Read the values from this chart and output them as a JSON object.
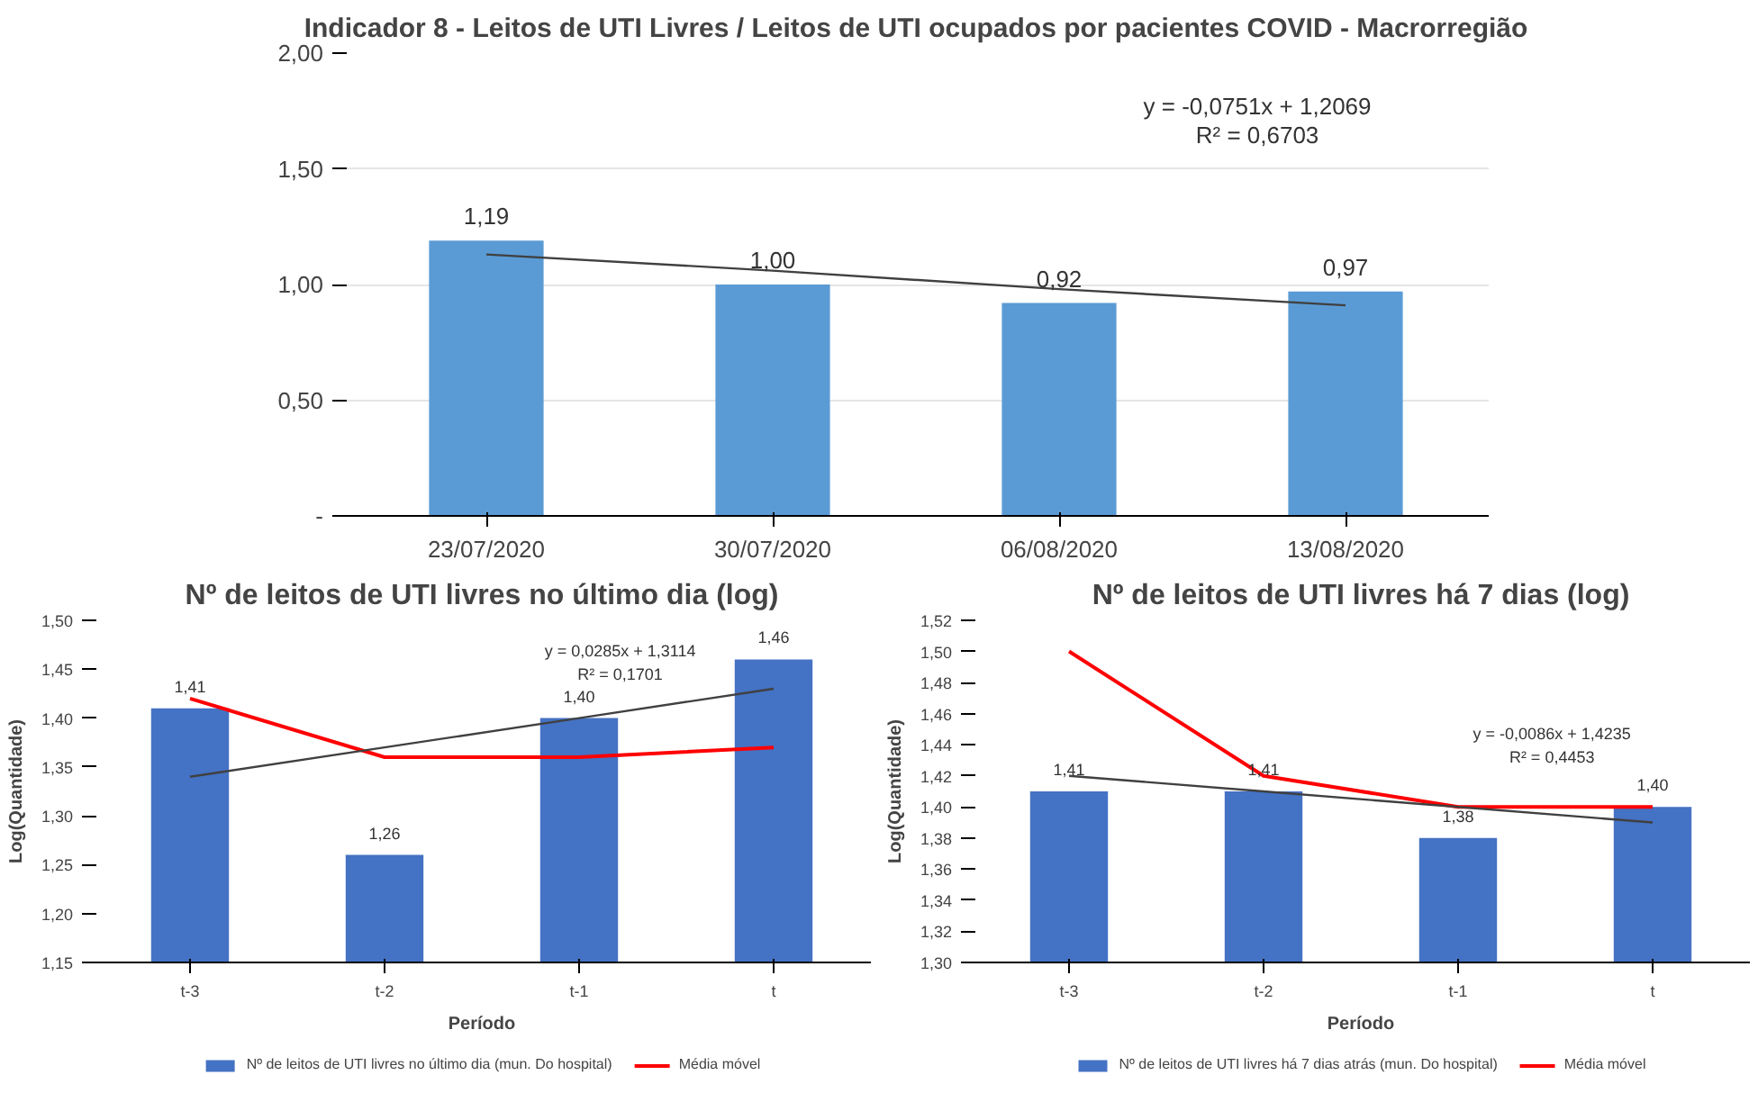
{
  "chart_data": [
    {
      "type": "bar",
      "title": "Indicador 8 - Leitos de UTI Livres / Leitos de UTI ocupados por pacientes COVID - Macrorregião",
      "categories": [
        "23/07/2020",
        "30/07/2020",
        "06/08/2020",
        "13/08/2020"
      ],
      "series": [
        {
          "color": "#5b9bd5",
          "values": [
            1.19,
            1.0,
            0.92,
            0.97
          ],
          "value_labels": [
            "1,19",
            "1,00",
            "0,92",
            "0,97"
          ]
        },
        {
          "type": "line",
          "color": "#404040",
          "values": [
            1.13,
            1.06,
            0.98,
            0.91
          ]
        }
      ],
      "ylim": [
        0,
        2
      ],
      "yticks": [
        {
          "value": 0,
          "label": "-"
        },
        {
          "value": 0.5,
          "label": "0,50"
        },
        {
          "value": 1,
          "label": "1,00"
        },
        {
          "value": 1.5,
          "label": "1,50"
        },
        {
          "value": 2,
          "label": "2,00"
        }
      ],
      "grid": "y",
      "legend": false,
      "annotations": [
        "y = -0,0751x + 1,2069",
        "R² = 0,6703"
      ]
    },
    {
      "type": "bar",
      "title": "Nº de leitos de UTI livres no último dia (log)",
      "xlabel": "Período",
      "ylabel": "Log(Quantidade)",
      "categories": [
        "t-3",
        "t-2",
        "t-1",
        "t"
      ],
      "series": [
        {
          "name": "Nº de leitos de UTI livres no último dia (mun. Do hospital)",
          "color": "#4472c4",
          "values": [
            1.41,
            1.26,
            1.4,
            1.46
          ],
          "value_labels": [
            "1,41",
            "1,26",
            "1,40",
            "1,46"
          ]
        },
        {
          "type": "line",
          "name": "Média móvel",
          "color": "#ff0000",
          "values": [
            1.42,
            1.36,
            1.36,
            1.37
          ]
        },
        {
          "type": "line",
          "color": "#404040",
          "values": [
            1.34,
            1.37,
            1.4,
            1.43
          ]
        }
      ],
      "ylim": [
        1.15,
        1.5
      ],
      "yticks": [
        {
          "value": 1.15,
          "label": "1,15"
        },
        {
          "value": 1.2,
          "label": "1,20"
        },
        {
          "value": 1.25,
          "label": "1,25"
        },
        {
          "value": 1.3,
          "label": "1,30"
        },
        {
          "value": 1.35,
          "label": "1,35"
        },
        {
          "value": 1.4,
          "label": "1,40"
        },
        {
          "value": 1.45,
          "label": "1,45"
        },
        {
          "value": 1.5,
          "label": "1,50"
        }
      ],
      "grid": false,
      "legend": "bottom",
      "annotations": [
        "y = 0,0285x + 1,3114",
        "R² = 0,1701"
      ]
    },
    {
      "type": "bar",
      "title": "Nº de leitos de UTI livres há 7 dias (log)",
      "xlabel": "Período",
      "ylabel": "Log(Quantidade)",
      "categories": [
        "t-3",
        "t-2",
        "t-1",
        "t"
      ],
      "series": [
        {
          "name": "Nº de leitos de UTI livres há 7 dias atrás (mun. Do hospital)",
          "color": "#4472c4",
          "values": [
            1.41,
            1.41,
            1.38,
            1.4
          ],
          "value_labels": [
            "1,41",
            "1,41",
            "1,38",
            "1,40"
          ]
        },
        {
          "type": "line",
          "name": "Média móvel",
          "color": "#ff0000",
          "values": [
            1.5,
            1.42,
            1.4,
            1.4
          ]
        },
        {
          "type": "line",
          "color": "#404040",
          "values": [
            1.42,
            1.41,
            1.4,
            1.39
          ]
        }
      ],
      "ylim": [
        1.3,
        1.52
      ],
      "yticks": [
        {
          "value": 1.3,
          "label": "1,30"
        },
        {
          "value": 1.32,
          "label": "1,32"
        },
        {
          "value": 1.34,
          "label": "1,34"
        },
        {
          "value": 1.36,
          "label": "1,36"
        },
        {
          "value": 1.38,
          "label": "1,38"
        },
        {
          "value": 1.4,
          "label": "1,40"
        },
        {
          "value": 1.42,
          "label": "1,42"
        },
        {
          "value": 1.44,
          "label": "1,44"
        },
        {
          "value": 1.46,
          "label": "1,46"
        },
        {
          "value": 1.48,
          "label": "1,48"
        },
        {
          "value": 1.5,
          "label": "1,50"
        },
        {
          "value": 1.52,
          "label": "1,52"
        }
      ],
      "grid": false,
      "legend": "bottom",
      "annotations": [
        "y = -0,0086x + 1,4235",
        "R² = 0,4453"
      ]
    }
  ]
}
